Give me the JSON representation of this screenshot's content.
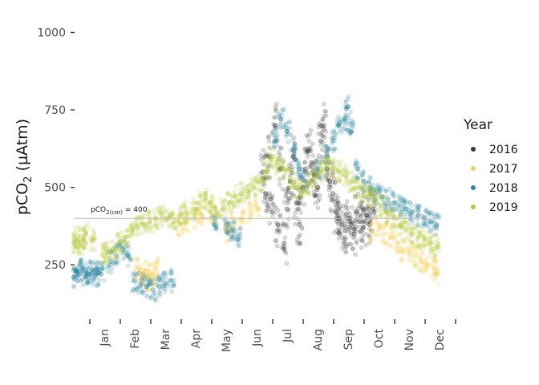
{
  "chart_data": {
    "type": "scatter",
    "title": "",
    "xlabel": "",
    "ylabel": {
      "text": "pCO",
      "sub": "2",
      "unit": " (µAtm)"
    },
    "ylim": [
      90,
      1040
    ],
    "yticks": [
      250,
      500,
      750,
      1000
    ],
    "x_categories": [
      "Jan",
      "Feb",
      "Mar",
      "Apr",
      "May",
      "Jun",
      "Jul",
      "Aug",
      "Sep",
      "Oct",
      "Nov",
      "Dec"
    ],
    "xlim": [
      0,
      12
    ],
    "reference_line": {
      "y": 400,
      "label_pre": "pCO",
      "label_sub": "2(cor)",
      "label_post": " = 400",
      "color": "#bdbdbd"
    },
    "grid": false,
    "legend": {
      "title": "Year",
      "placement": "right"
    },
    "series": [
      {
        "name": "2016",
        "color": "#3a3a3a",
        "points": [
          [
            6.2,
            550
          ],
          [
            6.3,
            480
          ],
          [
            6.4,
            600
          ],
          [
            6.5,
            420
          ],
          [
            6.6,
            700
          ],
          [
            6.7,
            380
          ],
          [
            6.8,
            560
          ],
          [
            6.9,
            320
          ],
          [
            7.0,
            430
          ],
          [
            7.1,
            520
          ],
          [
            7.2,
            600
          ],
          [
            7.3,
            450
          ],
          [
            7.4,
            380
          ],
          [
            7.5,
            500
          ],
          [
            7.6,
            560
          ],
          [
            7.7,
            620
          ],
          [
            7.8,
            580
          ],
          [
            7.9,
            540
          ],
          [
            8.0,
            500
          ],
          [
            8.1,
            650
          ],
          [
            8.2,
            700
          ],
          [
            8.3,
            560
          ],
          [
            8.4,
            520
          ],
          [
            8.5,
            480
          ],
          [
            8.6,
            420
          ],
          [
            8.7,
            400
          ],
          [
            8.8,
            380
          ],
          [
            8.9,
            360
          ],
          [
            9.0,
            400
          ],
          [
            9.1,
            380
          ],
          [
            9.2,
            350
          ],
          [
            9.3,
            420
          ],
          [
            9.4,
            390
          ],
          [
            9.5,
            370
          ],
          [
            9.6,
            410
          ],
          [
            9.7,
            380
          ],
          [
            9.8,
            430
          ]
        ]
      },
      {
        "name": "2017",
        "color": "#f5d060",
        "points": [
          [
            2.1,
            240
          ],
          [
            2.2,
            220
          ],
          [
            2.3,
            210
          ],
          [
            2.4,
            230
          ],
          [
            2.5,
            200
          ],
          [
            2.6,
            220
          ],
          [
            2.7,
            240
          ],
          [
            3.5,
            380
          ],
          [
            3.7,
            390
          ],
          [
            4.0,
            400
          ],
          [
            4.2,
            410
          ],
          [
            4.5,
            420
          ],
          [
            5.0,
            360
          ],
          [
            5.2,
            380
          ],
          [
            5.5,
            400
          ],
          [
            5.8,
            420
          ],
          [
            6.0,
            440
          ],
          [
            9.8,
            360
          ],
          [
            10.0,
            380
          ],
          [
            10.2,
            350
          ],
          [
            10.4,
            340
          ],
          [
            10.6,
            320
          ],
          [
            10.8,
            300
          ],
          [
            11.0,
            290
          ],
          [
            11.2,
            280
          ],
          [
            11.4,
            260
          ],
          [
            11.6,
            250
          ],
          [
            11.8,
            240
          ],
          [
            11.9,
            220
          ]
        ]
      },
      {
        "name": "2018",
        "color": "#2e86a0",
        "points": [
          [
            0.0,
            210
          ],
          [
            0.1,
            230
          ],
          [
            0.2,
            220
          ],
          [
            0.3,
            240
          ],
          [
            0.4,
            210
          ],
          [
            0.5,
            220
          ],
          [
            0.6,
            235
          ],
          [
            0.7,
            215
          ],
          [
            0.8,
            225
          ],
          [
            0.9,
            220
          ],
          [
            1.2,
            260
          ],
          [
            1.4,
            280
          ],
          [
            1.6,
            300
          ],
          [
            1.8,
            280
          ],
          [
            2.0,
            200
          ],
          [
            2.2,
            190
          ],
          [
            2.4,
            180
          ],
          [
            2.6,
            170
          ],
          [
            2.8,
            180
          ],
          [
            3.0,
            190
          ],
          [
            3.2,
            200
          ],
          [
            4.6,
            380
          ],
          [
            5.0,
            380
          ],
          [
            5.2,
            360
          ],
          [
            5.4,
            340
          ],
          [
            6.6,
            650
          ],
          [
            6.8,
            720
          ],
          [
            7.0,
            680
          ],
          [
            7.2,
            620
          ],
          [
            7.4,
            560
          ],
          [
            7.6,
            520
          ],
          [
            8.0,
            560
          ],
          [
            8.3,
            600
          ],
          [
            8.5,
            650
          ],
          [
            8.7,
            700
          ],
          [
            8.9,
            720
          ],
          [
            9.0,
            760
          ],
          [
            9.1,
            680
          ],
          [
            9.3,
            560
          ],
          [
            9.5,
            520
          ],
          [
            9.7,
            500
          ],
          [
            9.9,
            480
          ],
          [
            10.1,
            470
          ],
          [
            10.3,
            460
          ],
          [
            10.5,
            450
          ],
          [
            10.7,
            440
          ],
          [
            10.9,
            430
          ],
          [
            11.1,
            420
          ],
          [
            11.3,
            410
          ],
          [
            11.5,
            400
          ],
          [
            11.7,
            390
          ],
          [
            11.9,
            380
          ]
        ]
      },
      {
        "name": "2019",
        "color": "#b5c93a",
        "points": [
          [
            0.0,
            320
          ],
          [
            0.1,
            340
          ],
          [
            0.2,
            310
          ],
          [
            0.3,
            330
          ],
          [
            0.4,
            350
          ],
          [
            0.6,
            330
          ],
          [
            1.0,
            280
          ],
          [
            1.1,
            290
          ],
          [
            1.3,
            300
          ],
          [
            1.5,
            320
          ],
          [
            1.7,
            340
          ],
          [
            1.9,
            360
          ],
          [
            2.1,
            370
          ],
          [
            2.3,
            380
          ],
          [
            2.5,
            390
          ],
          [
            2.7,
            400
          ],
          [
            2.9,
            410
          ],
          [
            3.1,
            400
          ],
          [
            3.3,
            390
          ],
          [
            3.5,
            410
          ],
          [
            3.7,
            420
          ],
          [
            3.9,
            430
          ],
          [
            4.1,
            450
          ],
          [
            4.3,
            460
          ],
          [
            4.5,
            440
          ],
          [
            4.7,
            420
          ],
          [
            4.9,
            430
          ],
          [
            5.1,
            450
          ],
          [
            5.3,
            470
          ],
          [
            5.5,
            480
          ],
          [
            5.7,
            490
          ],
          [
            5.9,
            500
          ],
          [
            6.1,
            520
          ],
          [
            6.3,
            550
          ],
          [
            6.5,
            600
          ],
          [
            6.7,
            580
          ],
          [
            6.9,
            560
          ],
          [
            7.1,
            530
          ],
          [
            7.3,
            500
          ],
          [
            7.5,
            490
          ],
          [
            7.7,
            510
          ],
          [
            7.9,
            530
          ],
          [
            8.1,
            550
          ],
          [
            8.3,
            570
          ],
          [
            8.5,
            560
          ],
          [
            8.7,
            550
          ],
          [
            8.9,
            540
          ],
          [
            9.1,
            520
          ],
          [
            9.3,
            500
          ],
          [
            9.5,
            480
          ],
          [
            9.7,
            470
          ],
          [
            9.9,
            460
          ],
          [
            10.1,
            440
          ],
          [
            10.3,
            420
          ],
          [
            10.5,
            400
          ],
          [
            10.7,
            380
          ],
          [
            10.9,
            360
          ],
          [
            11.1,
            350
          ],
          [
            11.3,
            340
          ],
          [
            11.5,
            330
          ],
          [
            11.7,
            320
          ],
          [
            11.9,
            310
          ]
        ]
      }
    ]
  }
}
